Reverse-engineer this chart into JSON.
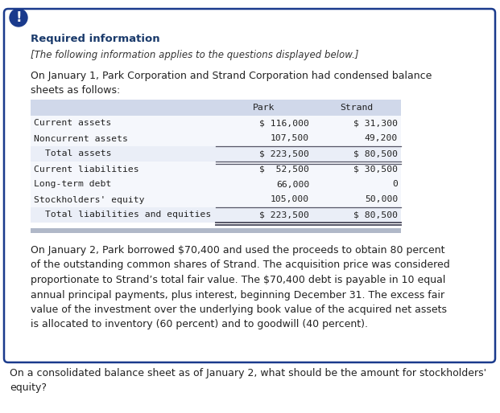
{
  "bg_color": "#ffffff",
  "outer_box_color": "#1a3a8c",
  "inner_box_bg": "#ffffff",
  "header_text": "Required information",
  "header_color": "#1a3a6b",
  "italic_text": "[The following information applies to the questions displayed below.]",
  "intro_text": "On January 1, Park Corporation and Strand Corporation had condensed balance\nsheets as follows:",
  "table_rows": [
    [
      "Current assets",
      "$ 116,000",
      "$ 31,300"
    ],
    [
      "Noncurrent assets",
      "107,500",
      "49,200"
    ],
    [
      "  Total assets",
      "$ 223,500",
      "$ 80,500"
    ],
    [
      "Current liabilities",
      "$  52,500",
      "$ 30,500"
    ],
    [
      "Long-term debt",
      "66,000",
      "0"
    ],
    [
      "Stockholders' equity",
      "105,000",
      "50,000"
    ],
    [
      "  Total liabilities and equities",
      "$ 223,500",
      "$ 80,500"
    ]
  ],
  "body_text": "On January 2, Park borrowed $70,400 and used the proceeds to obtain 80 percent\nof the outstanding common shares of Strand. The acquisition price was considered\nproportionate to Strand’s total fair value. The $70,400 debt is payable in 10 equal\nannual principal payments, plus interest, beginning December 31. The excess fair\nvalue of the investment over the underlying book value of the acquired net assets\nis allocated to inventory (60 percent) and to goodwill (40 percent).",
  "question_text": "On a consolidated balance sheet as of January 2, what should be the amount for stockholders'\nequity?",
  "table_header_bg": "#d0d8ea",
  "font_size_header": 9.5,
  "font_size_italic": 8.5,
  "font_size_body": 9.0,
  "font_size_table": 8.2,
  "font_size_question": 9.0
}
